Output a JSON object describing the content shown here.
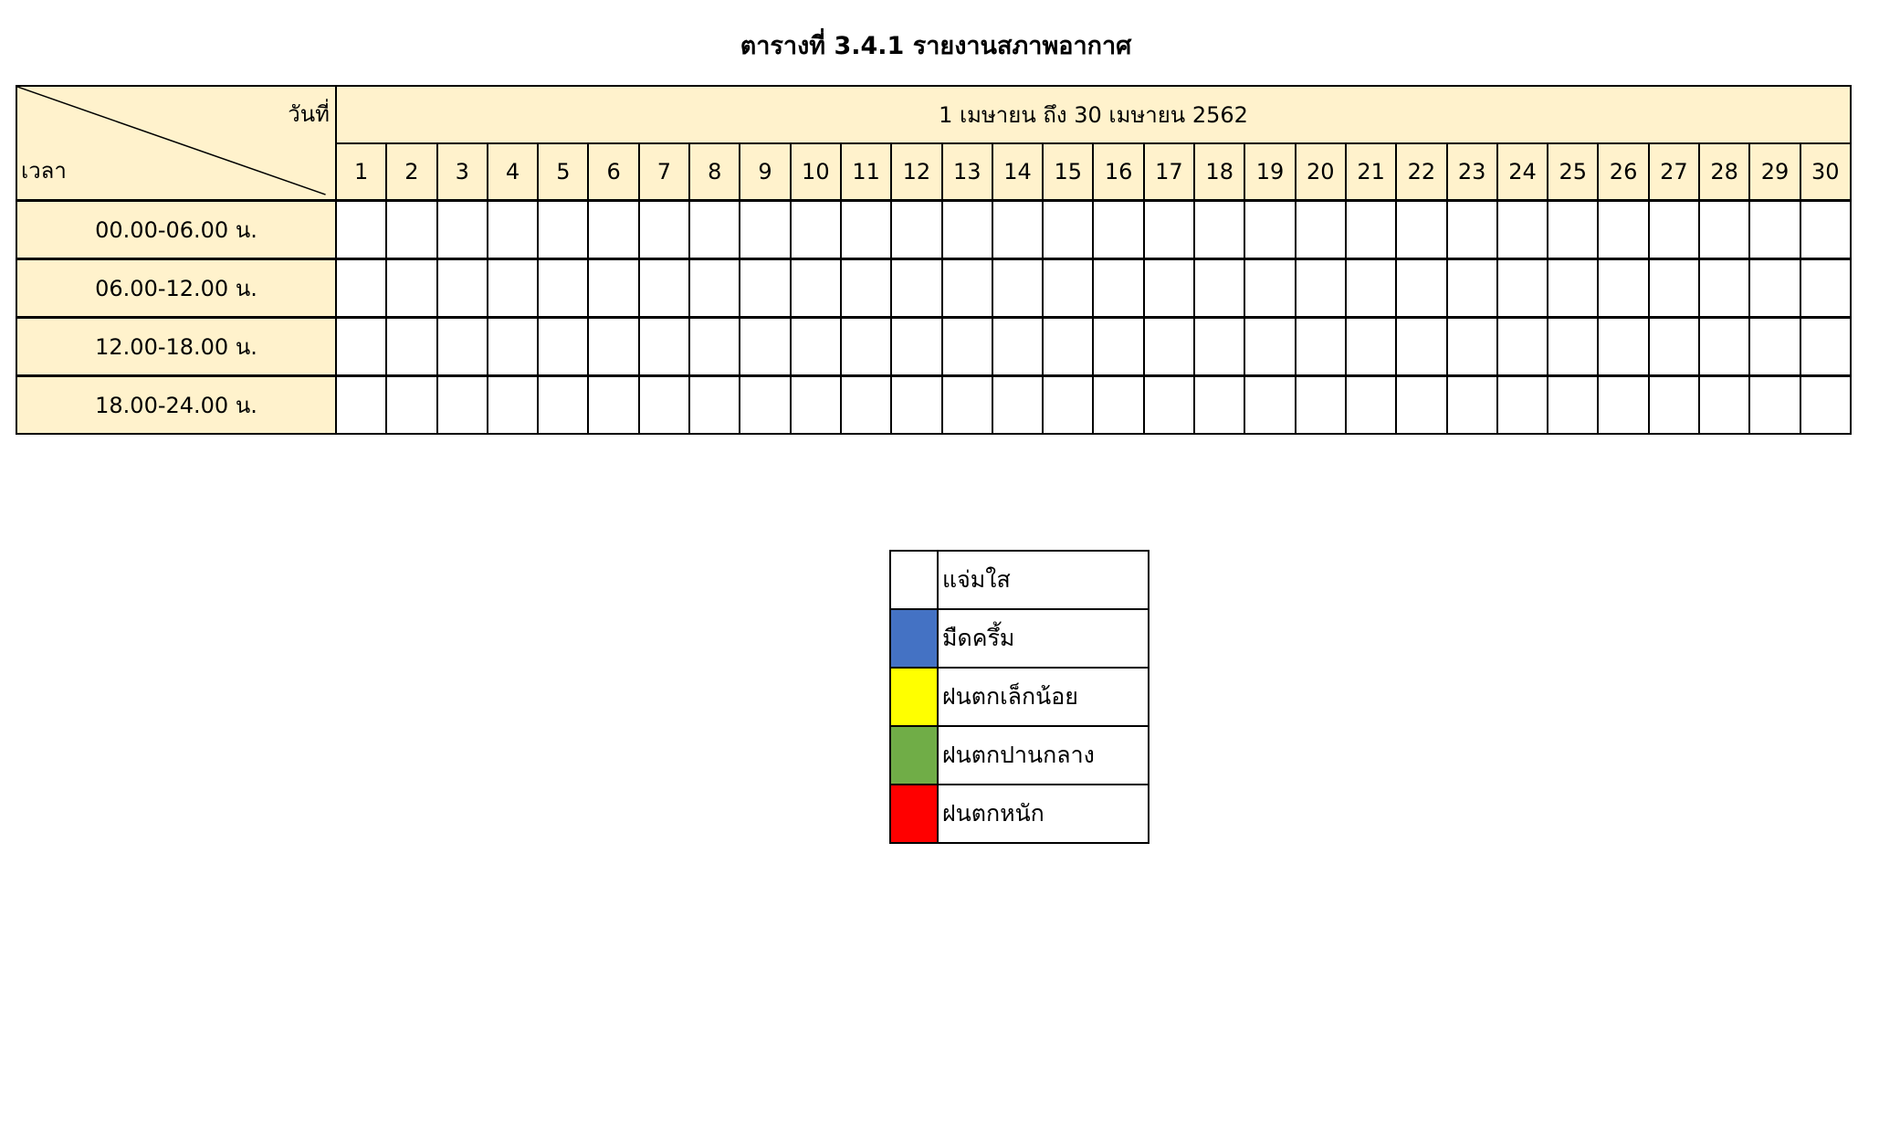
{
  "title": "ตารางที่ 3.4.1 รายงานสภาพอากาศ",
  "table": {
    "corner_day_label": "วันที่",
    "corner_time_label": "เวลา",
    "date_range": "1 เมษายน  ถึง 30  เมษายน 2562",
    "days": [
      "1",
      "2",
      "3",
      "4",
      "5",
      "6",
      "7",
      "8",
      "9",
      "10",
      "11",
      "12",
      "13",
      "14",
      "15",
      "16",
      "17",
      "18",
      "19",
      "20",
      "21",
      "22",
      "23",
      "24",
      "25",
      "26",
      "27",
      "28",
      "29",
      "30"
    ],
    "time_slots": [
      "00.00-06.00 น.",
      "06.00-12.00 น.",
      "12.00-18.00 น.",
      "18.00-24.00 น."
    ],
    "header_color": "#fff2cc"
  },
  "legend": [
    {
      "label": "แจ่มใส",
      "color": "#ffffff"
    },
    {
      "label": "มืดครึ้ม",
      "color": "#4472c4"
    },
    {
      "label": "ฝนตกเล็กน้อย",
      "color": "#ffff00"
    },
    {
      "label": "ฝนตกปานกลาง",
      "color": "#70ad47"
    },
    {
      "label": "ฝนตกหนัก",
      "color": "#ff0000"
    }
  ]
}
